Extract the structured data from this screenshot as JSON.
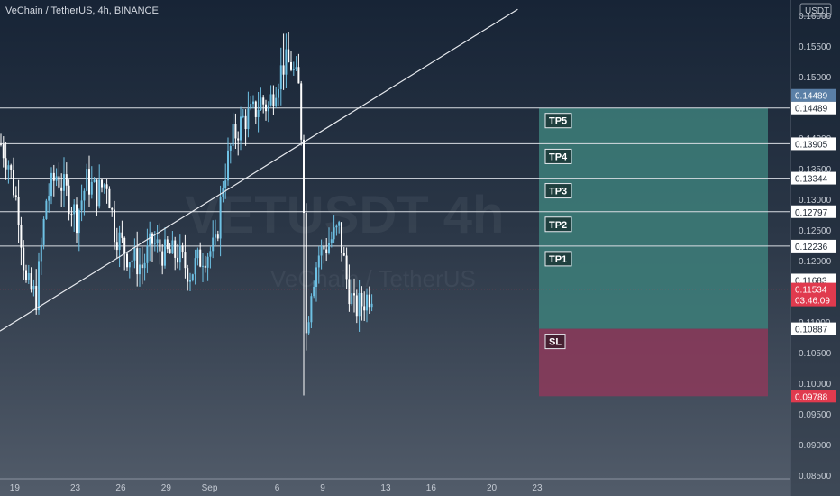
{
  "header": {
    "symbol": "VeChain / TetherUS",
    "interval": "4h",
    "exchange": "BINANCE"
  },
  "currency_label": "USDT",
  "watermark": {
    "ticker": "VETUSDT",
    "interval": "4h",
    "name": "VeChain / TetherUS"
  },
  "chart_data": {
    "type": "candlestick",
    "title": "VeChain / TetherUS, 4h, BINANCE",
    "ylim": [
      0.0816,
      0.1625
    ],
    "y_ticks": [
      "0.16000",
      "0.15500",
      "0.15000",
      "0.14000",
      "0.13500",
      "0.13000",
      "0.12500",
      "0.12000",
      "0.11000",
      "0.10500",
      "0.10000",
      "0.09500",
      "0.09000",
      "0.08500"
    ],
    "x_ticks": [
      {
        "label": "19",
        "index": 6
      },
      {
        "label": "23",
        "index": 30
      },
      {
        "label": "26",
        "index": 48
      },
      {
        "label": "29",
        "index": 66
      },
      {
        "label": "Sep",
        "index": 82
      },
      {
        "label": "6",
        "index": 111
      },
      {
        "label": "9",
        "index": 129
      },
      {
        "label": "13",
        "index": 153
      },
      {
        "label": "16",
        "index": 171
      },
      {
        "label": "20",
        "index": 195
      },
      {
        "label": "23",
        "index": 213
      }
    ],
    "ohlc_count": 148,
    "ohlc_approx_path": [
      [
        0,
        0.139
      ],
      [
        3,
        0.136
      ],
      [
        7,
        0.128
      ],
      [
        10,
        0.116
      ],
      [
        14,
        0.114
      ],
      [
        18,
        0.13
      ],
      [
        22,
        0.134
      ],
      [
        26,
        0.131
      ],
      [
        30,
        0.127
      ],
      [
        34,
        0.133
      ],
      [
        38,
        0.131
      ],
      [
        42,
        0.133
      ],
      [
        45,
        0.125
      ],
      [
        50,
        0.121
      ],
      [
        56,
        0.119
      ],
      [
        60,
        0.123
      ],
      [
        65,
        0.121
      ],
      [
        70,
        0.121
      ],
      [
        75,
        0.118
      ],
      [
        80,
        0.121
      ],
      [
        85,
        0.122
      ],
      [
        88,
        0.133
      ],
      [
        92,
        0.14
      ],
      [
        96,
        0.143
      ],
      [
        100,
        0.144
      ],
      [
        103,
        0.146
      ],
      [
        106,
        0.145
      ],
      [
        109,
        0.149
      ],
      [
        112,
        0.152
      ],
      [
        115,
        0.152
      ],
      [
        118,
        0.148
      ],
      [
        119,
        0.141
      ],
      [
        120,
        0.13
      ],
      [
        121,
        0.108
      ],
      [
        123,
        0.116
      ],
      [
        126,
        0.121
      ],
      [
        130,
        0.123
      ],
      [
        134,
        0.125
      ],
      [
        137,
        0.117
      ],
      [
        140,
        0.112
      ],
      [
        143,
        0.113
      ],
      [
        147,
        0.115
      ]
    ],
    "levels": [
      {
        "label": "TP5",
        "value": 0.14489
      },
      {
        "label": "TP4",
        "value": 0.13905
      },
      {
        "label": "TP3",
        "value": 0.13344
      },
      {
        "label": "TP2",
        "value": 0.12797
      },
      {
        "label": "TP1",
        "value": 0.12236
      },
      {
        "label": "",
        "value": 0.11683
      }
    ],
    "stop_loss": {
      "label": "SL",
      "value": 0.10887
    },
    "position_bottom": 0.09788,
    "current_price": {
      "value": "0.11534",
      "countdown": "03:46:09"
    },
    "trendline": [
      [
        0,
        0.1085
      ],
      [
        148,
        0.161
      ]
    ],
    "price_labels": {
      "tp5": "0.14489",
      "tp4": "0.13905",
      "tp3": "0.13344",
      "tp2": "0.12797",
      "tp1": "0.12236",
      "entry": "0.11683",
      "sl": "0.10887",
      "bottom": "0.09788"
    },
    "colors": {
      "profit_zone": "#3d7f7a",
      "loss_zone": "#8c3a5b",
      "candle_up": "#6ec1e4",
      "candle_down": "#ffffff",
      "price_tag": "#e03a4e",
      "top_tag": "#5a7fa6"
    }
  }
}
